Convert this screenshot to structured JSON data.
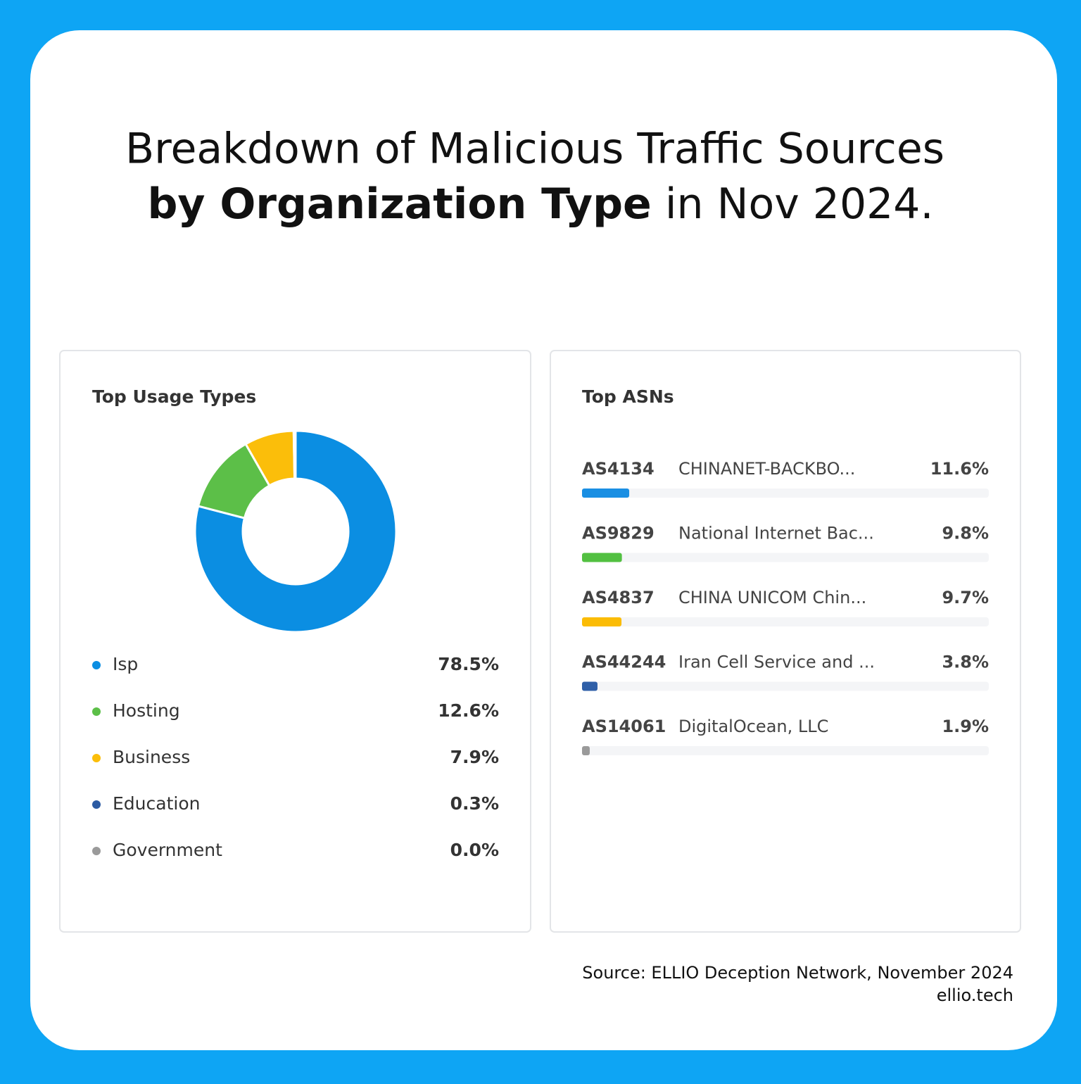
{
  "title": {
    "line1": "Breakdown of Malicious Traffic Sources",
    "bold": "by Organization Type",
    "rest": "in Nov 2024."
  },
  "chart_data": [
    {
      "type": "pie",
      "donut": true,
      "title": "Top Usage Types",
      "categories": [
        "Isp",
        "Hosting",
        "Business",
        "Education",
        "Government"
      ],
      "values": [
        78.5,
        12.6,
        7.9,
        0.3,
        0.0
      ],
      "value_labels": [
        "78.5%",
        "12.6%",
        "7.9%",
        "0.3%",
        "0.0%"
      ],
      "colors": [
        "#0b8ee2",
        "#5cbf48",
        "#fbbe0a",
        "#2c5ba3",
        "#9a9a9a"
      ]
    },
    {
      "type": "bar",
      "orientation": "horizontal",
      "title": "Top ASNs",
      "categories": [
        "AS4134",
        "AS9829",
        "AS4837",
        "AS44244",
        "AS14061"
      ],
      "names": [
        "CHINANET-BACKBO...",
        "National Internet Bac...",
        "CHINA UNICOM Chin...",
        "Iran Cell Service and ...",
        "DigitalOcean, LLC"
      ],
      "values": [
        11.6,
        9.8,
        9.7,
        3.8,
        1.9
      ],
      "value_labels": [
        "11.6%",
        "9.8%",
        "9.7%",
        "3.8%",
        "1.9%"
      ],
      "colors": [
        "#1a8fe3",
        "#52c041",
        "#fbbc05",
        "#2f5fa8",
        "#9a9a9a"
      ],
      "xlim": [
        0,
        100
      ]
    }
  ],
  "footer": {
    "source": "Source: ELLIO Deception Network, November 2024",
    "site": "ellio.tech"
  }
}
